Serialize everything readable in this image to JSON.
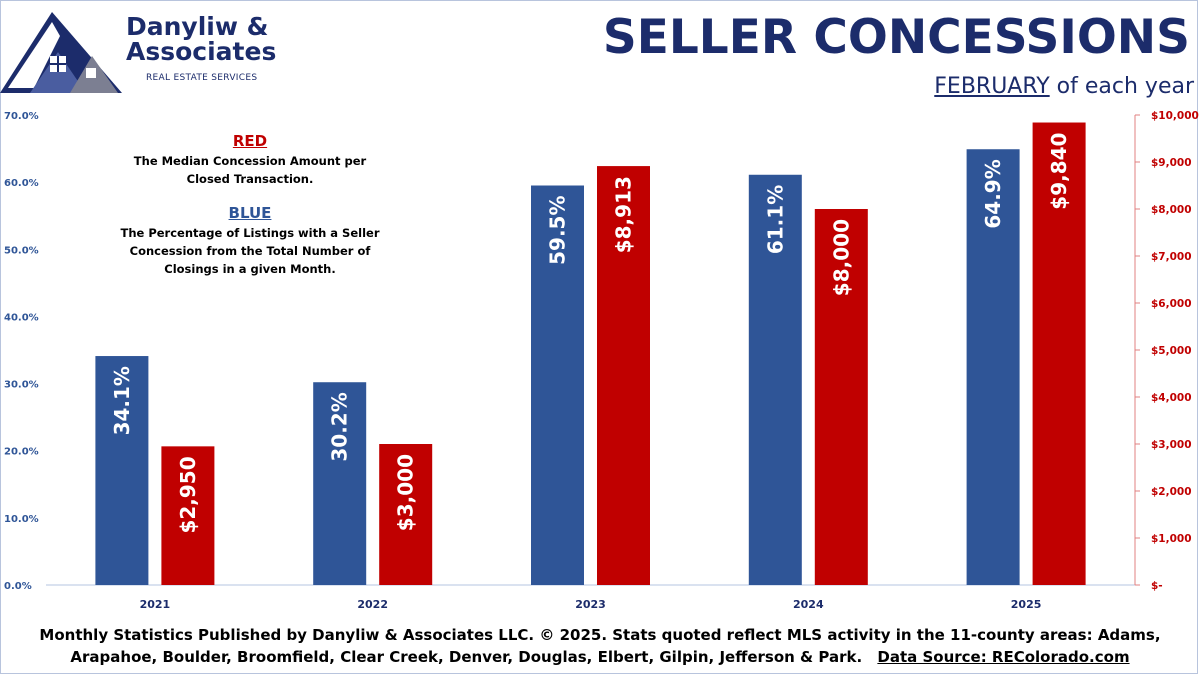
{
  "brand": {
    "name": "Danyliw & Associates",
    "tagline": "REAL ESTATE SERVICES"
  },
  "header": {
    "title": "SELLER CONCESSIONS",
    "subtitle_month": "FEBRUARY",
    "subtitle_rest": "of each year"
  },
  "legend": {
    "red_heading": "RED",
    "red_text": "The Median Concession Amount per Closed Transaction.",
    "blue_heading": "BLUE",
    "blue_text": "The Percentage of Listings with a Seller Concession from the Total Number of Closings in a given Month."
  },
  "chart_data": {
    "type": "bar",
    "categories": [
      "2021",
      "2022",
      "2023",
      "2024",
      "2025"
    ],
    "series": [
      {
        "name": "Percentage of Listings with a Seller Concession",
        "axis": "left",
        "color": "#2f5597",
        "values": [
          34.1,
          30.2,
          59.5,
          61.1,
          64.9
        ],
        "labels": [
          "34.1%",
          "30.2%",
          "59.5%",
          "61.1%",
          "64.9%"
        ]
      },
      {
        "name": "Median Concession Amount per Closed Transaction",
        "axis": "right",
        "color": "#c00000",
        "values": [
          2950,
          3000,
          8913,
          8000,
          9840
        ],
        "labels": [
          "$2,950",
          "$3,000",
          "$8,913",
          "$8,000",
          "$9,840"
        ]
      }
    ],
    "left_axis": {
      "range": [
        0,
        70
      ],
      "ticks": [
        "0.0%",
        "10.0%",
        "20.0%",
        "30.0%",
        "40.0%",
        "50.0%",
        "60.0%",
        "70.0%"
      ]
    },
    "right_axis": {
      "range": [
        0,
        10000
      ],
      "ticks": [
        "$-",
        "$1,000",
        "$2,000",
        "$3,000",
        "$4,000",
        "$5,000",
        "$6,000",
        "$7,000",
        "$8,000",
        "$9,000",
        "$10,000"
      ]
    },
    "grid": false
  },
  "footer": {
    "text": "Monthly Statistics Published by Danyliw & Associates LLC. © 2025. Stats quoted reflect MLS activity in the 11-county areas: Adams, Arapahoe, Boulder, Broomfield, Clear Creek, Denver, Douglas, Elbert, Gilpin, Jefferson & Park.",
    "source": "Data Source: REColorado.com"
  }
}
